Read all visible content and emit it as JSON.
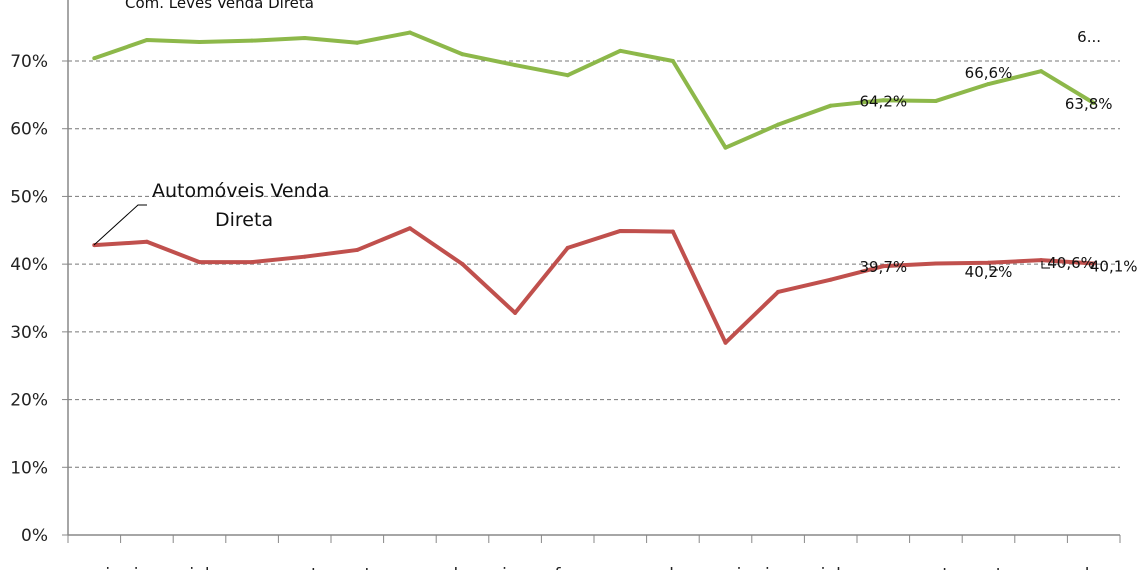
{
  "chart_data": {
    "type": "line",
    "categories": [
      "mai",
      "jun",
      "jul",
      "ago",
      "set",
      "out",
      "nov",
      "dez",
      "jan",
      "fev",
      "mar",
      "abr",
      "mai",
      "jun",
      "jul",
      "ago",
      "set",
      "out",
      "nov",
      "dez"
    ],
    "series": [
      {
        "name": "Com. Leves Venda Direta",
        "color": "#8db84a",
        "values": [
          70.4,
          73.1,
          72.8,
          73.0,
          73.4,
          72.7,
          74.2,
          71.0,
          69.4,
          67.9,
          71.5,
          70.0,
          57.2,
          60.6,
          63.4,
          64.2,
          64.1,
          66.6,
          68.5,
          63.8
        ]
      },
      {
        "name": "Automóveis Venda Direta",
        "color": "#c0504d",
        "values": [
          42.8,
          43.3,
          40.3,
          40.3,
          41.1,
          42.1,
          45.3,
          40.0,
          32.8,
          42.4,
          44.9,
          44.8,
          28.4,
          35.9,
          37.7,
          39.7,
          40.1,
          40.2,
          40.6,
          40.1
        ]
      }
    ],
    "data_labels": [
      {
        "series": 0,
        "index": 15,
        "text": "64,2%"
      },
      {
        "series": 0,
        "index": 17,
        "text": "66,6%"
      },
      {
        "series": 0,
        "index": 18,
        "text": "6..."
      },
      {
        "series": 0,
        "index": 19,
        "text": "63,8%"
      },
      {
        "series": 1,
        "index": 15,
        "text": "39,7%"
      },
      {
        "series": 1,
        "index": 17,
        "text": "40,2%"
      },
      {
        "series": 1,
        "index": 18,
        "text": "40,6%"
      },
      {
        "series": 1,
        "index": 19,
        "text": "40,1%"
      }
    ],
    "yticks": [
      "0%",
      "10%",
      "20%",
      "30%",
      "40%",
      "50%",
      "60%",
      "70%"
    ],
    "ylim": [
      0,
      80
    ],
    "grid": true,
    "xlabel": "",
    "ylabel": ""
  }
}
